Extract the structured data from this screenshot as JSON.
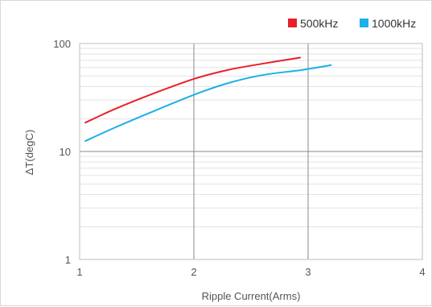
{
  "chart_data": {
    "type": "line",
    "title": "",
    "xlabel": "Ripple Current(Arms)",
    "ylabel": "ΔT(degC)",
    "xlim": [
      1,
      4
    ],
    "ylim": [
      1,
      100
    ],
    "yscale": "log",
    "x_ticks": [
      "1",
      "2",
      "3",
      "4"
    ],
    "y_ticks": [
      "1",
      "10",
      "100"
    ],
    "grid": true,
    "legend_position": "top-right",
    "series": [
      {
        "name": "500kHz",
        "color": "#e8202a",
        "x": [
          1.05,
          1.3,
          1.6,
          2.0,
          2.3,
          2.6,
          2.93
        ],
        "y": [
          18.5,
          24.5,
          33,
          47,
          57,
          65,
          74
        ]
      },
      {
        "name": "1000kHz",
        "color": "#1ab0e8",
        "x": [
          1.05,
          1.3,
          1.6,
          2.0,
          2.3,
          2.6,
          2.95,
          3.2
        ],
        "y": [
          12.5,
          16.5,
          22.5,
          33.5,
          43,
          51,
          57,
          63
        ]
      }
    ]
  }
}
